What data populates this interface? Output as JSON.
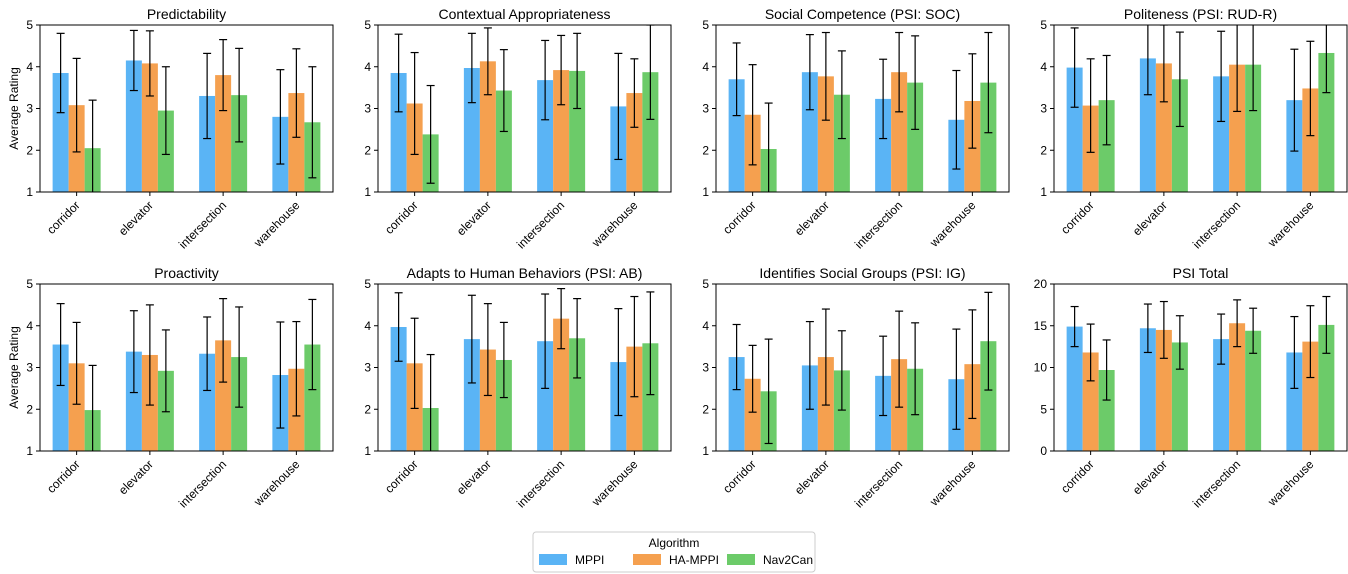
{
  "chart_data": {
    "type": "bar",
    "legend": {
      "title": "Algorithm",
      "placement": "bottom-center",
      "entries": [
        "MPPI",
        "HA-MPPI",
        "Nav2Can"
      ]
    },
    "colors": {
      "MPPI": "#5ab4f5",
      "HA-MPPI": "#f5a04f",
      "Nav2Can": "#6ccb69"
    },
    "categories": [
      "corridor",
      "elevator",
      "intersection",
      "warehouse"
    ],
    "ylabel": "Average Rating",
    "panels": [
      {
        "title": "Predictability",
        "ylim": [
          1,
          5
        ],
        "yticks": [
          1,
          2,
          3,
          4,
          5
        ],
        "series": [
          {
            "name": "MPPI",
            "values": [
              3.85,
              4.15,
              3.3,
              2.8
            ],
            "err": [
              0.95,
              0.72,
              1.02,
              1.13
            ]
          },
          {
            "name": "HA-MPPI",
            "values": [
              3.08,
              4.08,
              3.8,
              3.37
            ],
            "err": [
              1.12,
              0.78,
              0.85,
              1.06
            ]
          },
          {
            "name": "Nav2Can",
            "values": [
              2.05,
              2.95,
              3.32,
              2.67
            ],
            "err": [
              1.15,
              1.05,
              1.12,
              1.33
            ]
          }
        ]
      },
      {
        "title": "Contextual Appropriateness",
        "ylim": [
          1,
          5
        ],
        "yticks": [
          1,
          2,
          3,
          4,
          5
        ],
        "series": [
          {
            "name": "MPPI",
            "values": [
              3.85,
              3.97,
              3.68,
              3.05
            ],
            "err": [
              0.93,
              0.83,
              0.95,
              1.27
            ]
          },
          {
            "name": "HA-MPPI",
            "values": [
              3.12,
              4.13,
              3.92,
              3.37
            ],
            "err": [
              1.22,
              0.8,
              0.83,
              0.82
            ]
          },
          {
            "name": "Nav2Can",
            "values": [
              2.38,
              3.43,
              3.9,
              3.87
            ],
            "err": [
              1.17,
              0.98,
              0.9,
              1.13
            ]
          }
        ]
      },
      {
        "title": "Social Competence (PSI: SOC)",
        "ylim": [
          1,
          5
        ],
        "yticks": [
          1,
          2,
          3,
          4,
          5
        ],
        "series": [
          {
            "name": "MPPI",
            "values": [
              3.7,
              3.87,
              3.23,
              2.73
            ],
            "err": [
              0.87,
              0.9,
              0.95,
              1.18
            ]
          },
          {
            "name": "HA-MPPI",
            "values": [
              2.85,
              3.77,
              3.87,
              3.18
            ],
            "err": [
              1.2,
              1.05,
              0.95,
              1.13
            ]
          },
          {
            "name": "Nav2Can",
            "values": [
              2.03,
              3.33,
              3.62,
              3.62
            ],
            "err": [
              1.1,
              1.05,
              1.12,
              1.2
            ]
          }
        ]
      },
      {
        "title": "Politeness (PSI: RUD-R)",
        "ylim": [
          1,
          5
        ],
        "yticks": [
          1,
          2,
          3,
          4,
          5
        ],
        "series": [
          {
            "name": "MPPI",
            "values": [
              3.98,
              4.2,
              3.77,
              3.2
            ],
            "err": [
              0.95,
              0.87,
              1.08,
              1.22
            ]
          },
          {
            "name": "HA-MPPI",
            "values": [
              3.07,
              4.08,
              4.05,
              3.48
            ],
            "err": [
              1.12,
              0.92,
              1.12,
              1.13
            ]
          },
          {
            "name": "Nav2Can",
            "values": [
              3.2,
              3.7,
              4.05,
              4.33
            ],
            "err": [
              1.07,
              1.13,
              1.1,
              0.95
            ]
          }
        ]
      },
      {
        "title": "Proactivity",
        "ylim": [
          1,
          5
        ],
        "yticks": [
          1,
          2,
          3,
          4,
          5
        ],
        "series": [
          {
            "name": "MPPI",
            "values": [
              3.55,
              3.38,
              3.33,
              2.82
            ],
            "err": [
              0.98,
              0.98,
              0.88,
              1.27
            ]
          },
          {
            "name": "HA-MPPI",
            "values": [
              3.1,
              3.3,
              3.65,
              2.97
            ],
            "err": [
              0.98,
              1.2,
              1.0,
              1.13
            ]
          },
          {
            "name": "Nav2Can",
            "values": [
              1.98,
              2.92,
              3.25,
              3.55
            ],
            "err": [
              1.07,
              0.98,
              1.2,
              1.08
            ]
          }
        ]
      },
      {
        "title": "Adapts to Human Behaviors (PSI: AB)",
        "ylim": [
          1,
          5
        ],
        "yticks": [
          1,
          2,
          3,
          4,
          5
        ],
        "series": [
          {
            "name": "MPPI",
            "values": [
              3.97,
              3.68,
              3.63,
              3.13
            ],
            "err": [
              0.82,
              1.05,
              1.13,
              1.28
            ]
          },
          {
            "name": "HA-MPPI",
            "values": [
              3.1,
              3.43,
              4.17,
              3.5
            ],
            "err": [
              1.08,
              1.1,
              0.72,
              1.2
            ]
          },
          {
            "name": "Nav2Can",
            "values": [
              2.03,
              3.18,
              3.7,
              3.58
            ],
            "err": [
              1.28,
              0.9,
              0.95,
              1.23
            ]
          }
        ]
      },
      {
        "title": "Identifies Social Groups (PSI: IG)",
        "ylim": [
          1,
          5
        ],
        "yticks": [
          1,
          2,
          3,
          4,
          5
        ],
        "series": [
          {
            "name": "MPPI",
            "values": [
              3.25,
              3.05,
              2.8,
              2.72
            ],
            "err": [
              0.78,
              1.05,
              0.95,
              1.2
            ]
          },
          {
            "name": "HA-MPPI",
            "values": [
              2.73,
              3.25,
              3.2,
              3.08
            ],
            "err": [
              0.8,
              1.15,
              1.15,
              1.3
            ]
          },
          {
            "name": "Nav2Can",
            "values": [
              2.43,
              2.93,
              2.97,
              3.63
            ],
            "err": [
              1.25,
              0.95,
              1.1,
              1.17
            ]
          }
        ]
      },
      {
        "title": "PSI Total",
        "ylim": [
          0,
          20
        ],
        "yticks": [
          0,
          5,
          10,
          15,
          20
        ],
        "series": [
          {
            "name": "MPPI",
            "values": [
              14.9,
              14.7,
              13.4,
              11.8
            ],
            "err": [
              2.4,
              2.9,
              3.0,
              4.3
            ]
          },
          {
            "name": "HA-MPPI",
            "values": [
              11.8,
              14.5,
              15.3,
              13.1
            ],
            "err": [
              3.4,
              3.4,
              2.8,
              4.3
            ]
          },
          {
            "name": "Nav2Can",
            "values": [
              9.7,
              13.0,
              14.4,
              15.1
            ],
            "err": [
              3.6,
              3.2,
              2.7,
              3.4
            ]
          }
        ]
      }
    ]
  }
}
